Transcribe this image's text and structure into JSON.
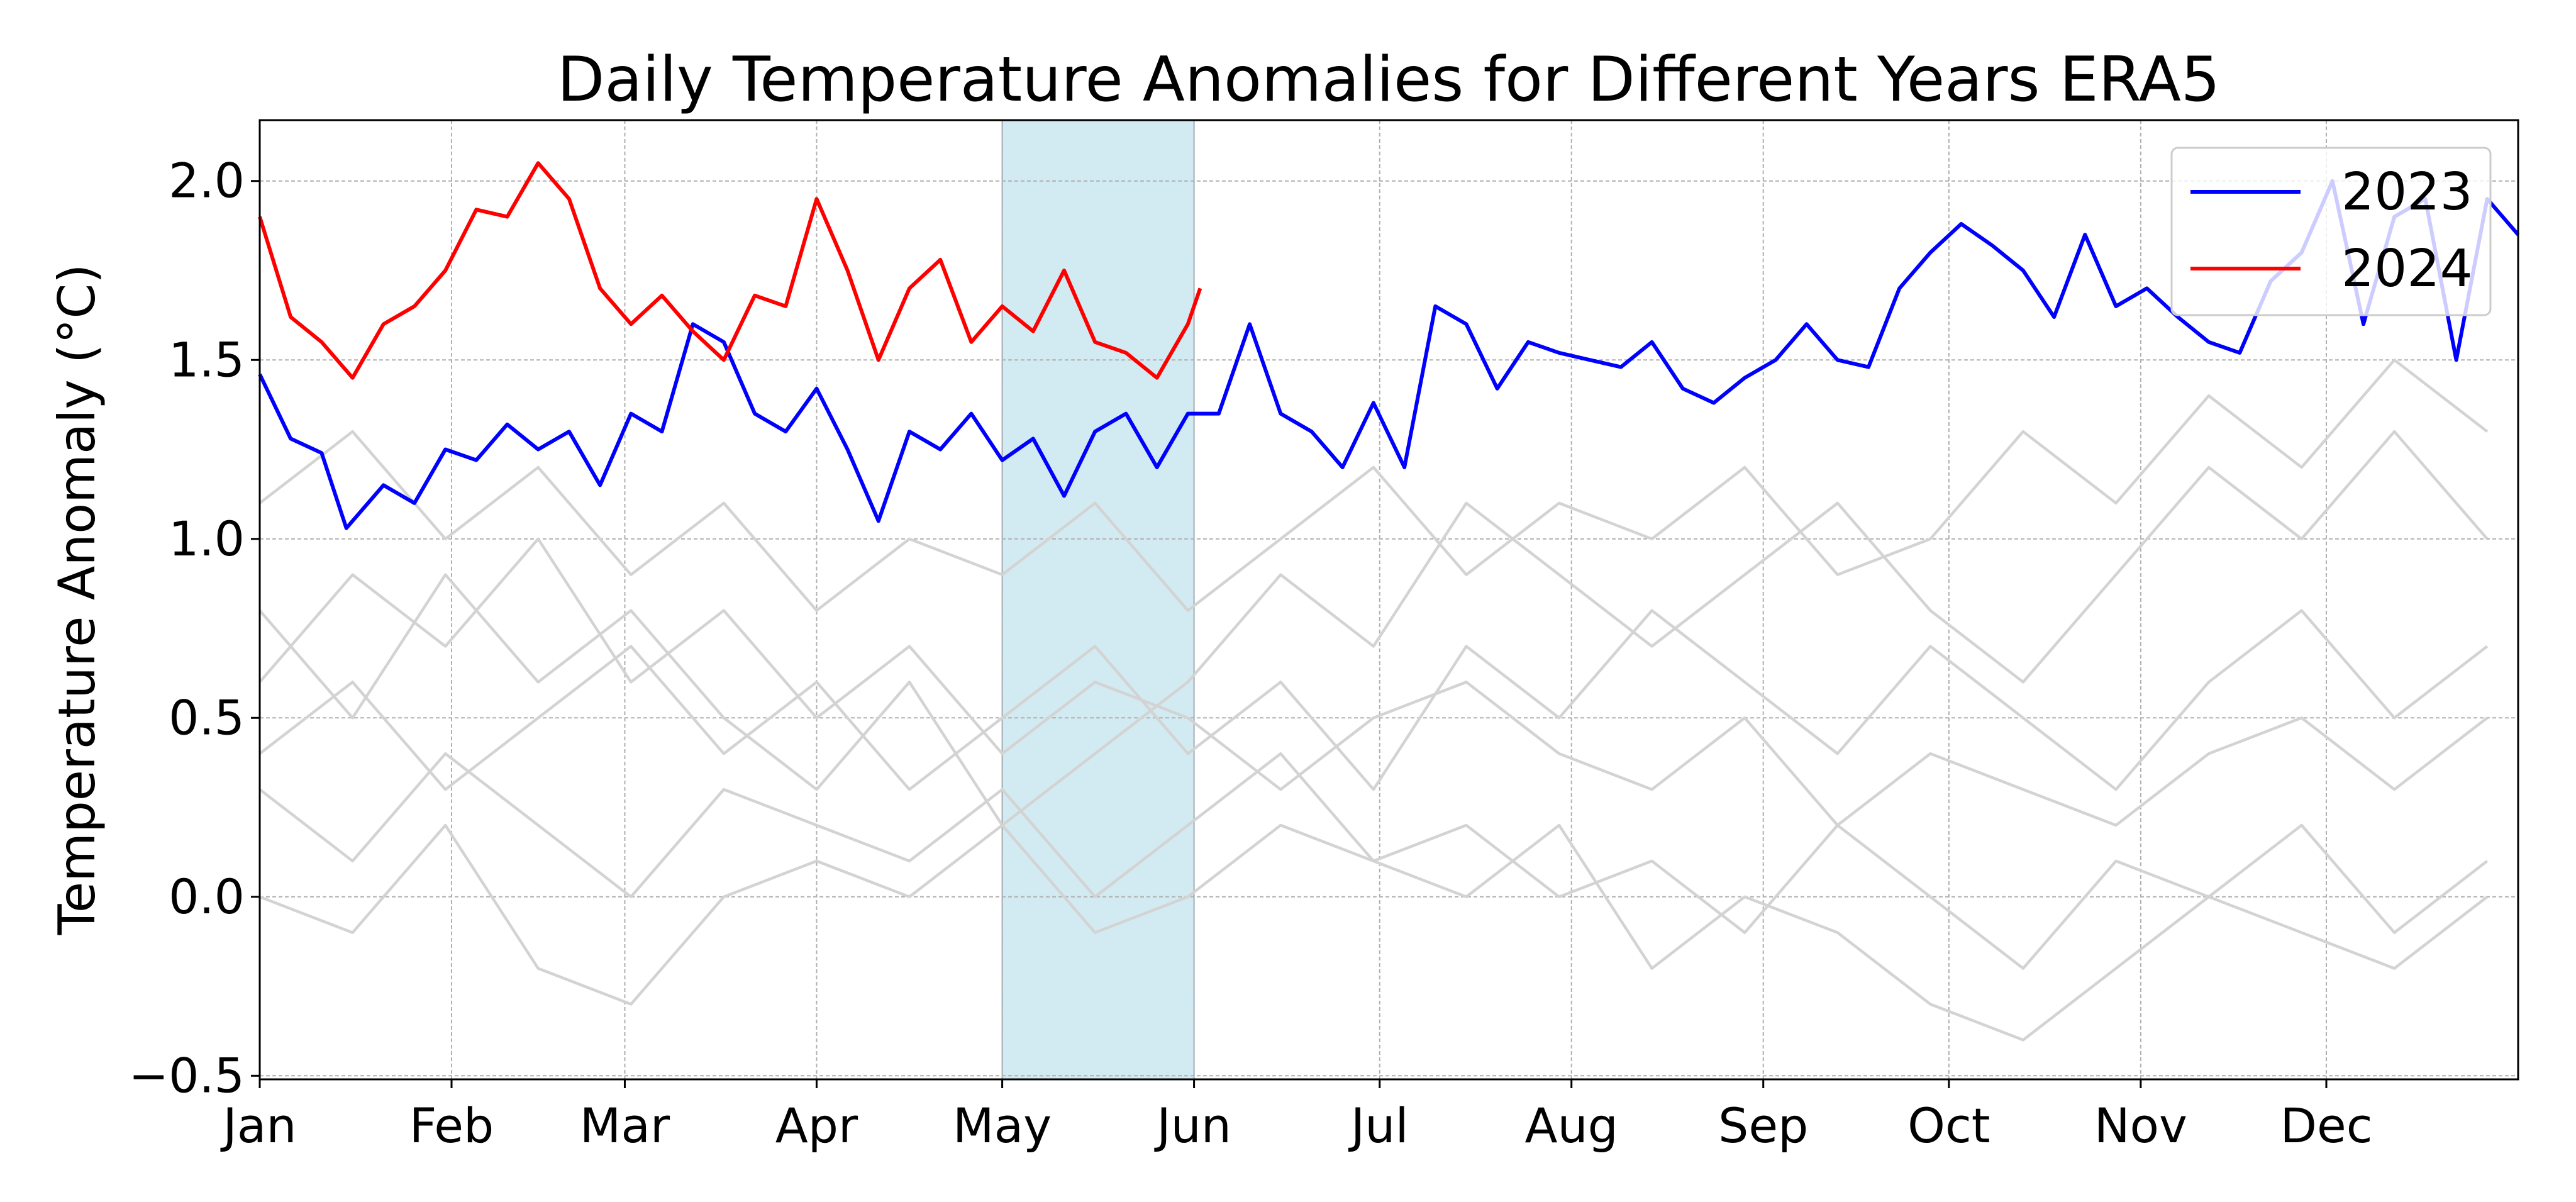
{
  "chart_data": {
    "type": "line",
    "title": "Daily Temperature Anomalies for Different Years ERA5",
    "ylabel": "Temperature Anomaly (°C)",
    "xlim": [
      0,
      365
    ],
    "ylim": [
      -0.51,
      2.17
    ],
    "xticks": [
      {
        "value": 0,
        "label": "Jan"
      },
      {
        "value": 31,
        "label": "Feb"
      },
      {
        "value": 59,
        "label": "Mar"
      },
      {
        "value": 90,
        "label": "Apr"
      },
      {
        "value": 120,
        "label": "May"
      },
      {
        "value": 151,
        "label": "Jun"
      },
      {
        "value": 181,
        "label": "Jul"
      },
      {
        "value": 212,
        "label": "Aug"
      },
      {
        "value": 243,
        "label": "Sep"
      },
      {
        "value": 273,
        "label": "Oct"
      },
      {
        "value": 304,
        "label": "Nov"
      },
      {
        "value": 334,
        "label": "Dec"
      }
    ],
    "yticks": [
      {
        "value": -0.5,
        "label": "−0.5"
      },
      {
        "value": 0,
        "label": "0.0"
      },
      {
        "value": 0.5,
        "label": "0.5"
      },
      {
        "value": 1,
        "label": "1.0"
      },
      {
        "value": 1.5,
        "label": "1.5"
      },
      {
        "value": 2,
        "label": "2.0"
      }
    ],
    "grid": true,
    "legend": "upper right",
    "highlight": {
      "xmin": 120,
      "xmax": 151,
      "color": "#add8e6"
    },
    "series": [
      {
        "color": "#d3d3d3",
        "x": [
          0,
          15,
          30,
          45,
          60,
          75,
          90,
          105,
          120,
          135,
          150,
          165,
          180,
          195,
          210,
          225,
          240,
          255,
          270,
          285,
          300,
          315,
          330,
          345,
          360
        ],
        "values": [
          0.3,
          0.1,
          0.4,
          0.2,
          0.0,
          0.3,
          0.2,
          0.1,
          0.3,
          0.0,
          0.2,
          0.4,
          0.1,
          0.2,
          0.0,
          0.1,
          -0.1,
          0.2,
          0.0,
          -0.2,
          0.1,
          0.0,
          0.2,
          -0.1,
          0.1
        ]
      },
      {
        "color": "#d3d3d3",
        "x": [
          0,
          15,
          30,
          45,
          60,
          75,
          90,
          105,
          120,
          135,
          150,
          165,
          180,
          195,
          210,
          225,
          240,
          255,
          270,
          285,
          300,
          315,
          330,
          345,
          360
        ],
        "values": [
          0.6,
          0.9,
          0.7,
          1.0,
          0.6,
          0.8,
          0.5,
          0.7,
          0.4,
          0.6,
          0.5,
          0.3,
          0.5,
          0.6,
          0.4,
          0.3,
          0.5,
          0.2,
          0.4,
          0.3,
          0.2,
          0.4,
          0.5,
          0.3,
          0.5
        ]
      },
      {
        "color": "#d3d3d3",
        "x": [
          0,
          15,
          30,
          45,
          60,
          75,
          90,
          105,
          120,
          135,
          150,
          165,
          180,
          195,
          210,
          225,
          240,
          255,
          270,
          285,
          300,
          315,
          330,
          345,
          360
        ],
        "values": [
          1.1,
          1.3,
          1.0,
          1.2,
          0.9,
          1.1,
          0.8,
          1.0,
          0.9,
          1.1,
          0.8,
          1.0,
          1.2,
          0.9,
          1.1,
          1.0,
          1.2,
          0.9,
          1.0,
          1.3,
          1.1,
          1.4,
          1.2,
          1.5,
          1.3
        ]
      },
      {
        "color": "#d3d3d3",
        "x": [
          0,
          15,
          30,
          45,
          60,
          75,
          90,
          105,
          120,
          135,
          150,
          165,
          180,
          195,
          210,
          225,
          240,
          255,
          270,
          285,
          300,
          315,
          330,
          345,
          360
        ],
        "values": [
          0.0,
          -0.1,
          0.2,
          -0.2,
          -0.3,
          0.0,
          0.1,
          0.0,
          0.2,
          -0.1,
          0.0,
          0.2,
          0.1,
          0.0,
          0.2,
          -0.2,
          0.0,
          -0.1,
          -0.3,
          -0.4,
          -0.2,
          0.0,
          -0.1,
          -0.2,
          0.0
        ]
      },
      {
        "color": "#d3d3d3",
        "x": [
          0,
          15,
          30,
          45,
          60,
          75,
          90,
          105,
          120,
          135,
          150,
          165,
          180,
          195,
          210,
          225,
          240,
          255,
          270,
          285,
          300,
          315,
          330,
          345,
          360
        ],
        "values": [
          0.4,
          0.6,
          0.3,
          0.5,
          0.7,
          0.4,
          0.6,
          0.3,
          0.5,
          0.7,
          0.4,
          0.6,
          0.3,
          0.7,
          0.5,
          0.8,
          0.6,
          0.4,
          0.7,
          0.5,
          0.3,
          0.6,
          0.8,
          0.5,
          0.7
        ]
      },
      {
        "color": "#d3d3d3",
        "x": [
          0,
          15,
          30,
          45,
          60,
          75,
          90,
          105,
          120,
          135,
          150,
          165,
          180,
          195,
          210,
          225,
          240,
          255,
          270,
          285,
          300,
          315,
          330,
          345,
          360
        ],
        "values": [
          0.8,
          0.5,
          0.9,
          0.6,
          0.8,
          0.5,
          0.3,
          0.6,
          0.2,
          0.4,
          0.6,
          0.9,
          0.7,
          1.1,
          0.9,
          0.7,
          0.9,
          1.1,
          0.8,
          0.6,
          0.9,
          1.2,
          1.0,
          1.3,
          1.0
        ]
      },
      {
        "name": "2023",
        "color": "#0000ff",
        "x": [
          0,
          5,
          10,
          14,
          20,
          25,
          30,
          35,
          40,
          45,
          50,
          55,
          60,
          65,
          70,
          75,
          80,
          85,
          90,
          95,
          100,
          105,
          110,
          115,
          120,
          125,
          130,
          135,
          140,
          145,
          150,
          155,
          160,
          165,
          170,
          175,
          180,
          185,
          190,
          195,
          200,
          205,
          210,
          215,
          220,
          225,
          230,
          235,
          240,
          245,
          250,
          255,
          260,
          265,
          270,
          275,
          280,
          285,
          290,
          295,
          300,
          305,
          310,
          315,
          320,
          325,
          330,
          335,
          340,
          345,
          350,
          355,
          360,
          365
        ],
        "values": [
          1.46,
          1.28,
          1.24,
          1.03,
          1.15,
          1.1,
          1.25,
          1.22,
          1.32,
          1.25,
          1.3,
          1.15,
          1.35,
          1.3,
          1.6,
          1.55,
          1.35,
          1.3,
          1.42,
          1.25,
          1.05,
          1.3,
          1.25,
          1.35,
          1.22,
          1.28,
          1.12,
          1.3,
          1.35,
          1.2,
          1.35,
          1.35,
          1.6,
          1.35,
          1.3,
          1.2,
          1.38,
          1.2,
          1.65,
          1.6,
          1.42,
          1.55,
          1.52,
          1.5,
          1.48,
          1.55,
          1.42,
          1.38,
          1.45,
          1.5,
          1.6,
          1.5,
          1.48,
          1.7,
          1.8,
          1.88,
          1.82,
          1.75,
          1.62,
          1.85,
          1.65,
          1.7,
          1.62,
          1.55,
          1.52,
          1.72,
          1.8,
          2.0,
          1.6,
          1.9,
          1.95,
          1.5,
          1.95,
          1.85
        ]
      },
      {
        "name": "2024",
        "color": "#ff0000",
        "x": [
          0,
          5,
          10,
          15,
          20,
          25,
          30,
          35,
          40,
          45,
          50,
          55,
          60,
          65,
          70,
          75,
          80,
          85,
          90,
          95,
          100,
          105,
          110,
          115,
          120,
          125,
          130,
          135,
          140,
          145,
          150,
          152
        ],
        "values": [
          1.9,
          1.62,
          1.55,
          1.45,
          1.6,
          1.65,
          1.75,
          1.92,
          1.9,
          2.05,
          1.95,
          1.7,
          1.6,
          1.68,
          1.58,
          1.5,
          1.68,
          1.65,
          1.95,
          1.75,
          1.5,
          1.7,
          1.78,
          1.55,
          1.65,
          1.58,
          1.75,
          1.55,
          1.52,
          1.45,
          1.6,
          1.7
        ]
      }
    ]
  }
}
